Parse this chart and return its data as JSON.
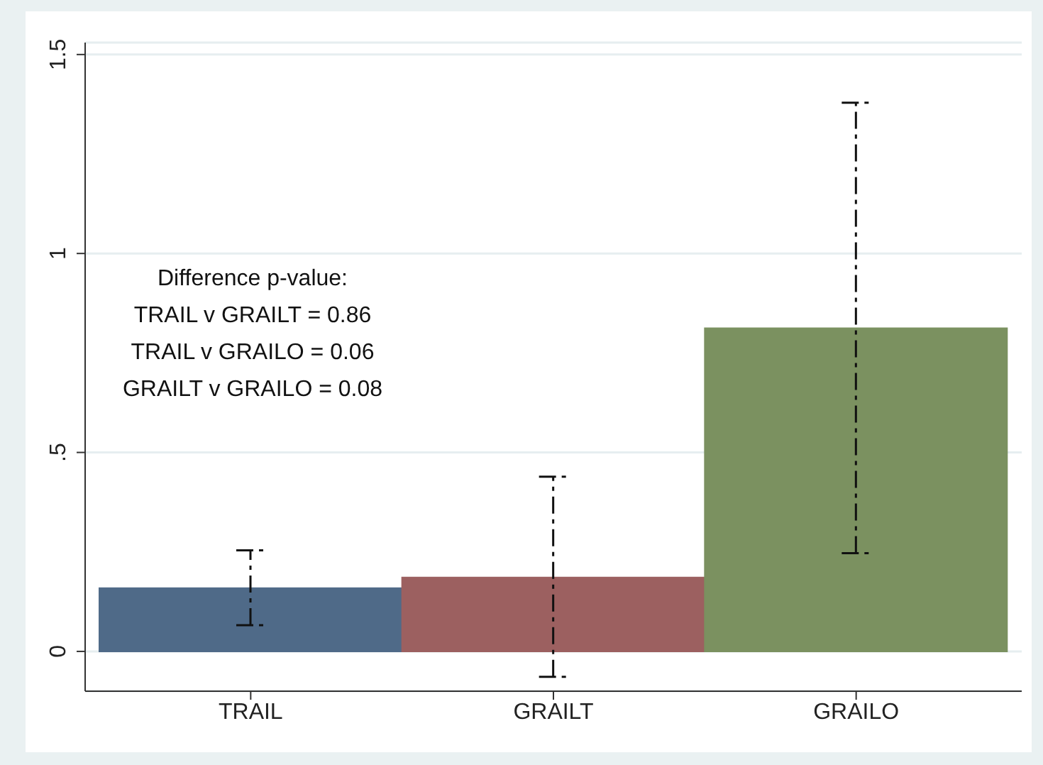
{
  "chart_data": {
    "type": "bar",
    "categories": [
      "TRAIL",
      "GRAILT",
      "GRAILO"
    ],
    "values": [
      0.159,
      0.186,
      0.812
    ],
    "colors": [
      "#4f6a88",
      "#9c6060",
      "#7b9160"
    ],
    "errors": [
      [
        0.066,
        0.254
      ],
      [
        -0.064,
        0.439
      ],
      [
        0.247,
        1.379
      ]
    ],
    "ylim": [
      -0.1,
      1.53
    ],
    "yticks": [
      0,
      {
        "value": 0.5,
        "label": ".5"
      },
      1,
      1.5
    ],
    "grid": "y",
    "annotations": [
      "Difference p-value:",
      "TRAIL v GRAILT = 0.86",
      "TRAIL v GRAILO = 0.06",
      "GRAILT v GRAILO = 0.08"
    ]
  }
}
